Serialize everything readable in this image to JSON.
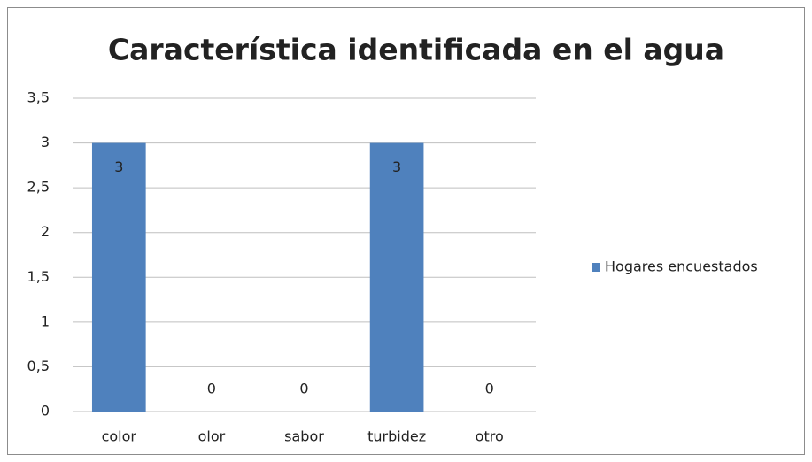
{
  "chart_data": {
    "type": "bar",
    "title": "Característica identificada en el agua",
    "categories": [
      "color",
      "olor",
      "sabor",
      "turbidez",
      "otro"
    ],
    "series": [
      {
        "name": "Hogares encuestados",
        "color": "#4f81bd",
        "values": [
          3,
          0,
          0,
          3,
          0
        ]
      }
    ],
    "ylim": [
      0,
      3.5
    ],
    "yticks": [
      0,
      {
        "value": 0.5,
        "label": "0,5"
      },
      1,
      {
        "value": 1.5,
        "label": "1,5"
      },
      2,
      {
        "value": 2.5,
        "label": "2,5"
      },
      3,
      {
        "value": 3.5,
        "label": "3,5"
      }
    ],
    "grid": true,
    "legend": "right"
  }
}
